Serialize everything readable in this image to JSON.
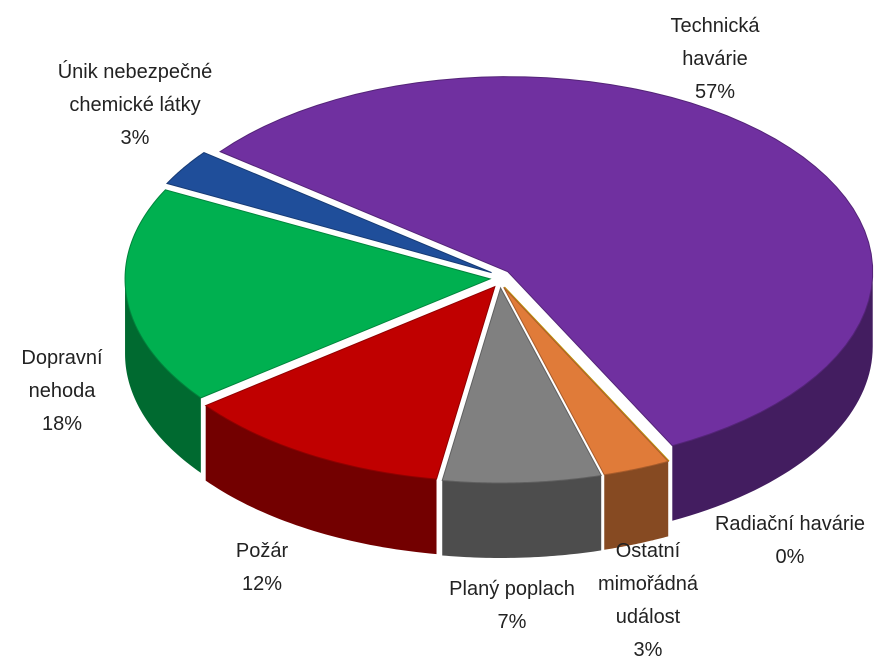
{
  "chart_data": {
    "type": "pie",
    "categories": [
      "Technická havárie",
      "Radiační havárie",
      "Ostatní mimořádná událost",
      "Planý poplach",
      "Požár",
      "Dopravní nehoda",
      "Únik nebezpečné chemické látky"
    ],
    "values": [
      57,
      0,
      3,
      7,
      12,
      18,
      3
    ],
    "value_labels": [
      "57%",
      "0%",
      "3%",
      "7%",
      "12%",
      "18%",
      "3%"
    ],
    "colors": [
      "#7030a0",
      "#ffc000",
      "#e07b39",
      "#808080",
      "#c00000",
      "#00b050",
      "#1f4e9a"
    ]
  }
}
